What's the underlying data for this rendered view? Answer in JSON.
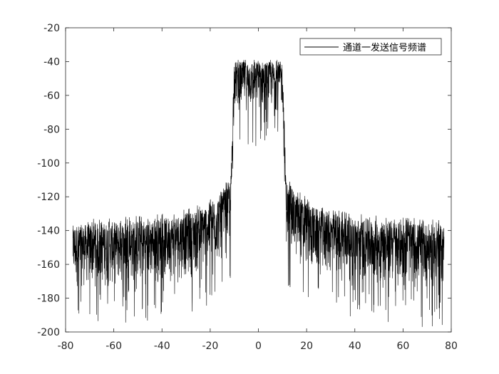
{
  "chart_data": {
    "type": "line",
    "title": "",
    "xlabel": "",
    "ylabel": "",
    "xlim": [
      -80,
      80
    ],
    "ylim": [
      -200,
      -20
    ],
    "xticks": [
      -80,
      -60,
      -40,
      -20,
      0,
      20,
      40,
      60,
      80
    ],
    "yticks": [
      -20,
      -40,
      -60,
      -80,
      -100,
      -120,
      -140,
      -160,
      -180,
      -200
    ],
    "grid": false,
    "legend_position": "top-right",
    "series": [
      {
        "name": "通道一发送信号频谱",
        "color": "#000000",
        "x_range": [
          -77,
          77
        ],
        "passband": [
          -11.5,
          11.5
        ],
        "envelope_top": [
          {
            "x": -77,
            "y": -137
          },
          {
            "x": -60,
            "y": -135
          },
          {
            "x": -40,
            "y": -133
          },
          {
            "x": -25,
            "y": -128
          },
          {
            "x": -15,
            "y": -118
          },
          {
            "x": -11.5,
            "y": -110
          },
          {
            "x": -10,
            "y": -40
          },
          {
            "x": 10,
            "y": -40
          },
          {
            "x": 11.5,
            "y": -110
          },
          {
            "x": 15,
            "y": -118
          },
          {
            "x": 25,
            "y": -128
          },
          {
            "x": 40,
            "y": -133
          },
          {
            "x": 60,
            "y": -135
          },
          {
            "x": 77,
            "y": -137
          }
        ],
        "envelope_bottom": [
          {
            "x": -77,
            "y": -175
          },
          {
            "x": -60,
            "y": -175
          },
          {
            "x": -40,
            "y": -172
          },
          {
            "x": -25,
            "y": -168
          },
          {
            "x": -15,
            "y": -160
          },
          {
            "x": -11.5,
            "y": -150
          },
          {
            "x": -10,
            "y": -70
          },
          {
            "x": 10,
            "y": -70
          },
          {
            "x": 11.5,
            "y": -150
          },
          {
            "x": 15,
            "y": -160
          },
          {
            "x": 25,
            "y": -168
          },
          {
            "x": 40,
            "y": -172
          },
          {
            "x": 60,
            "y": -175
          },
          {
            "x": 77,
            "y": -175
          }
        ],
        "min_value": -197,
        "max_value": -39
      }
    ]
  }
}
